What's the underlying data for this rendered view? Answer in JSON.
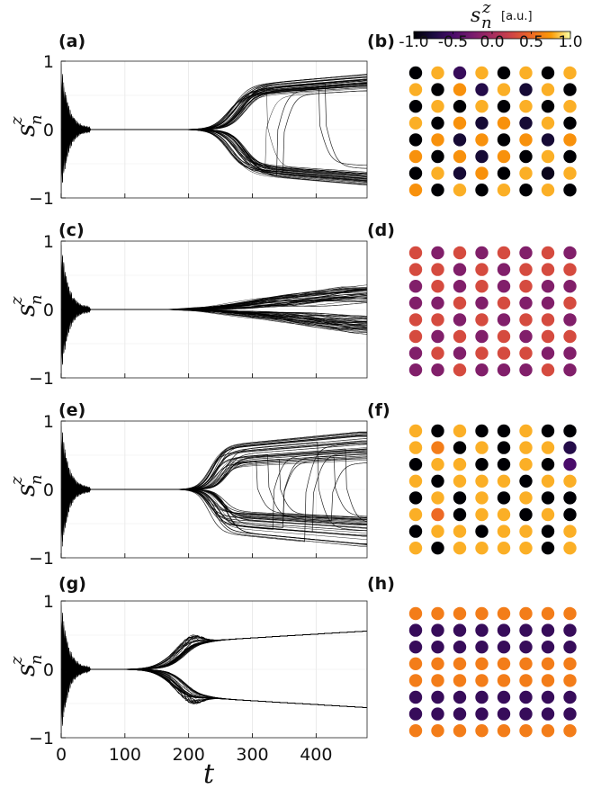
{
  "panel_labels": {
    "a": "(a)",
    "b": "(b)",
    "c": "(c)",
    "d": "(d)",
    "e": "(e)",
    "f": "(f)",
    "g": "(g)",
    "h": "(h)"
  },
  "axes": {
    "ylabel": "s",
    "ylabel_sub": "n",
    "ylabel_sup": "z",
    "xlabel": "t",
    "ytick_labels": [
      "1",
      "0",
      "−1"
    ],
    "xtick_labels": [
      "0",
      "100",
      "200",
      "300",
      "400"
    ]
  },
  "colorbar": {
    "title": "s",
    "title_sub": "n",
    "title_sup": "z",
    "unit": "[a.u.]",
    "tick_labels": [
      "-1.0",
      "-0.5",
      "0.0",
      "0.5",
      "1.0"
    ],
    "ticks": [
      -1.0,
      -0.5,
      0.0,
      0.5,
      1.0
    ],
    "colormap": "inferno",
    "range": [
      -1,
      1
    ]
  },
  "colors": {
    "dark_purple": "#1a0a40",
    "purple": "#4a0c6b",
    "magenta": "#8c2981",
    "red_orange": "#e55c30",
    "orange": "#f5a10d",
    "yellow": "#f6dc44"
  },
  "chart_data": [
    {
      "type": "line",
      "panel": "(a)",
      "xlim": [
        0,
        480
      ],
      "ylim": [
        -1,
        1
      ],
      "x_ticks": [
        0,
        100,
        200,
        300,
        400
      ],
      "y_ticks": [
        -1,
        0,
        1
      ],
      "grid": true,
      "description_of_series": "64 trajectories; oscillating |s|~1 decaying by t~40, flat at 0 until t~260, then splitting to about +0.6..+0.8 and -0.6..-0.8 by t=480",
      "series_groups": [
        {
          "count": 32,
          "onset": 275,
          "final": 0.78,
          "end_value_range": [
            0.6,
            0.82
          ]
        },
        {
          "count": 32,
          "onset": 275,
          "final": -0.78,
          "end_value_range": [
            -0.82,
            -0.6
          ]
        }
      ]
    },
    {
      "type": "scatter",
      "panel": "(b)",
      "grid_shape": [
        8,
        8
      ],
      "colormap_range": [
        -1,
        1
      ],
      "values": [
        [
          -1.0,
          0.8,
          -0.6,
          0.8,
          -1.0,
          0.8,
          -1.0,
          0.8
        ],
        [
          0.8,
          -1.0,
          0.7,
          -0.7,
          0.8,
          -0.8,
          0.8,
          -1.0
        ],
        [
          -1.0,
          0.8,
          -1.0,
          0.8,
          -1.0,
          0.8,
          -1.0,
          0.8
        ],
        [
          0.8,
          -1.0,
          0.7,
          -0.8,
          0.7,
          -0.8,
          0.8,
          -1.0
        ],
        [
          -1.0,
          0.7,
          -0.8,
          0.7,
          -1.0,
          0.7,
          -0.8,
          0.7
        ],
        [
          0.7,
          -1.0,
          0.7,
          -0.8,
          0.7,
          -1.0,
          0.8,
          -1.0
        ],
        [
          -1.0,
          0.8,
          -0.8,
          0.7,
          -1.0,
          0.8,
          -0.9,
          0.8
        ],
        [
          0.7,
          -1.0,
          0.8,
          -1.0,
          0.8,
          -1.0,
          0.8,
          -1.0
        ]
      ]
    },
    {
      "type": "line",
      "panel": "(c)",
      "xlim": [
        0,
        480
      ],
      "ylim": [
        -1,
        1
      ],
      "x_ticks": [
        0,
        100,
        200,
        300,
        400
      ],
      "y_ticks": [
        -1,
        0,
        1
      ],
      "grid": true,
      "description_of_series": "64 trajectories; oscillation decaying by t~40, flat at 0 until t~150, then slowly spreading to about +0.1..+0.35 and -0.1..-0.35 by t=480",
      "series_groups": [
        {
          "count": 32,
          "onset": 170,
          "final": 0.28,
          "end_value_range": [
            0.1,
            0.35
          ]
        },
        {
          "count": 32,
          "onset": 170,
          "final": -0.28,
          "end_value_range": [
            -0.35,
            -0.1
          ]
        }
      ]
    },
    {
      "type": "scatter",
      "panel": "(d)",
      "grid_shape": [
        8,
        8
      ],
      "colormap_range": [
        -1,
        1
      ],
      "values": [
        [
          0.3,
          -0.2,
          0.3,
          -0.2,
          0.3,
          -0.2,
          0.3,
          -0.2
        ],
        [
          0.3,
          0.3,
          -0.2,
          0.3,
          -0.2,
          0.3,
          0.3,
          0.3
        ],
        [
          -0.2,
          0.3,
          -0.2,
          0.3,
          -0.2,
          0.3,
          -0.2,
          -0.2
        ],
        [
          -0.2,
          -0.2,
          0.3,
          -0.2,
          0.3,
          -0.2,
          -0.2,
          0.3
        ],
        [
          0.3,
          0.3,
          -0.2,
          0.3,
          -0.2,
          0.3,
          0.3,
          -0.2
        ],
        [
          0.3,
          -0.2,
          0.3,
          -0.2,
          0.3,
          -0.2,
          0.3,
          0.3
        ],
        [
          -0.2,
          0.3,
          -0.2,
          0.3,
          0.3,
          0.3,
          -0.2,
          -0.2
        ],
        [
          -0.2,
          -0.2,
          0.3,
          -0.2,
          -0.2,
          -0.2,
          0.3,
          -0.2
        ]
      ]
    },
    {
      "type": "line",
      "panel": "(e)",
      "xlim": [
        0,
        480
      ],
      "ylim": [
        -1,
        1
      ],
      "x_ticks": [
        0,
        100,
        200,
        300,
        400
      ],
      "y_ticks": [
        -1,
        0,
        1
      ],
      "grid": true,
      "description_of_series": "64 trajectories; oscillation decaying by t~40, flat at 0 until t~220, then splitting with many switching trajectories, ending near +0.8 and -0.8",
      "series_groups": [
        {
          "count": 32,
          "onset": 245,
          "final": 0.8,
          "end_value_range": [
            0.4,
            0.85
          ]
        },
        {
          "count": 32,
          "onset": 245,
          "final": -0.8,
          "end_value_range": [
            -0.85,
            -0.4
          ]
        }
      ]
    },
    {
      "type": "scatter",
      "panel": "(f)",
      "grid_shape": [
        8,
        8
      ],
      "colormap_range": [
        -1,
        1
      ],
      "values": [
        [
          0.8,
          -1.0,
          0.8,
          -1.0,
          -1.0,
          0.8,
          -1.0,
          -1.0
        ],
        [
          0.8,
          0.6,
          -1.0,
          0.8,
          -1.0,
          0.8,
          0.8,
          -0.7
        ],
        [
          -1.0,
          0.8,
          0.8,
          -1.0,
          -1.0,
          0.8,
          -1.0,
          -0.5
        ],
        [
          0.8,
          -1.0,
          0.8,
          0.8,
          0.8,
          -1.0,
          0.8,
          0.8
        ],
        [
          -1.0,
          0.8,
          -1.0,
          0.8,
          -1.0,
          0.8,
          -1.0,
          -1.0
        ],
        [
          0.8,
          0.5,
          -1.0,
          0.8,
          0.8,
          -1.0,
          0.8,
          -1.0
        ],
        [
          -1.0,
          0.8,
          0.8,
          -1.0,
          0.8,
          0.8,
          -1.0,
          0.8
        ],
        [
          0.8,
          -1.0,
          0.8,
          0.8,
          0.8,
          0.8,
          -1.0,
          0.8
        ]
      ]
    },
    {
      "type": "line",
      "panel": "(g)",
      "xlim": [
        0,
        480
      ],
      "ylim": [
        -1,
        1
      ],
      "x_ticks": [
        0,
        100,
        200,
        300,
        400
      ],
      "y_ticks": [
        -1,
        0,
        1
      ],
      "grid": true,
      "description_of_series": "64 trajectories; oscillation decaying by t~40, flat at 0 until t~100, then splitting around t~190 into two tight bundles rising to +0.55 and -0.55 by t=480",
      "series_groups": [
        {
          "count": 32,
          "onset": 185,
          "final": 0.56,
          "end_value_range": [
            0.54,
            0.58
          ]
        },
        {
          "count": 32,
          "onset": 185,
          "final": -0.56,
          "end_value_range": [
            -0.58,
            -0.54
          ]
        }
      ]
    },
    {
      "type": "scatter",
      "panel": "(h)",
      "grid_shape": [
        8,
        8
      ],
      "colormap_range": [
        -1,
        1
      ],
      "values": [
        [
          0.6,
          0.6,
          0.6,
          0.6,
          0.6,
          0.6,
          0.6,
          0.6
        ],
        [
          -0.6,
          -0.6,
          -0.6,
          -0.6,
          -0.6,
          -0.6,
          -0.6,
          -0.6
        ],
        [
          -0.6,
          -0.6,
          -0.6,
          -0.6,
          -0.6,
          -0.6,
          -0.6,
          -0.6
        ],
        [
          0.6,
          0.6,
          0.6,
          0.6,
          0.6,
          0.6,
          0.6,
          0.6
        ],
        [
          0.6,
          0.6,
          0.6,
          0.6,
          0.6,
          0.6,
          0.6,
          0.6
        ],
        [
          -0.6,
          -0.6,
          -0.6,
          -0.6,
          -0.6,
          -0.6,
          -0.6,
          -0.6
        ],
        [
          -0.6,
          -0.6,
          -0.6,
          -0.6,
          -0.6,
          -0.6,
          -0.6,
          -0.6
        ],
        [
          0.6,
          0.6,
          0.6,
          0.6,
          0.6,
          0.6,
          0.6,
          0.6
        ]
      ]
    }
  ]
}
